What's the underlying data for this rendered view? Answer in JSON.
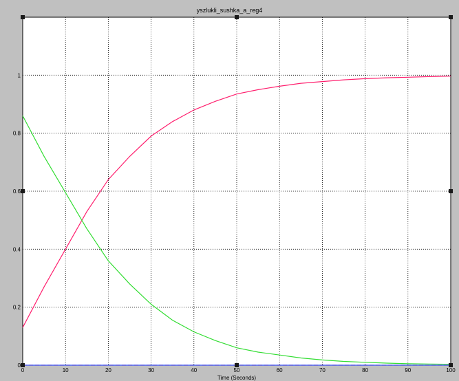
{
  "window": {
    "title": "yszlukli_sushka_a_reg4"
  },
  "chart_data": {
    "type": "line",
    "title": "yszlukli_sushka_a_reg4",
    "xlabel": "Time (Seconds)",
    "ylabel": "",
    "xlim": [
      0,
      100
    ],
    "ylim": [
      0,
      1.2
    ],
    "xticks": [
      0,
      10,
      20,
      30,
      40,
      50,
      60,
      70,
      80,
      90,
      100
    ],
    "yticks": [
      0,
      0.2,
      0.4,
      0.6,
      0.8,
      1
    ],
    "xtick_labels": [
      "0",
      "10",
      "20",
      "30",
      "40",
      "50",
      "60",
      "70",
      "80",
      "90",
      "100"
    ],
    "ytick_labels": [
      "0",
      "0.2",
      "0.4",
      "0.6",
      "0.8",
      "1"
    ],
    "grid": true,
    "background": "#ffffff",
    "series": [
      {
        "color": "#ff1f6e",
        "x": [
          0,
          5,
          10,
          15,
          20,
          25,
          30,
          35,
          40,
          45,
          50,
          55,
          60,
          65,
          70,
          75,
          80,
          85,
          90,
          95,
          100
        ],
        "y": [
          0.13,
          0.27,
          0.4,
          0.53,
          0.64,
          0.72,
          0.79,
          0.84,
          0.88,
          0.91,
          0.935,
          0.95,
          0.962,
          0.972,
          0.978,
          0.984,
          0.988,
          0.991,
          0.993,
          0.995,
          0.997
        ]
      },
      {
        "color": "#33dd33",
        "x": [
          0,
          5,
          10,
          15,
          20,
          25,
          30,
          35,
          40,
          45,
          50,
          55,
          60,
          65,
          70,
          75,
          80,
          85,
          90,
          95,
          100
        ],
        "y": [
          0.86,
          0.72,
          0.595,
          0.47,
          0.36,
          0.28,
          0.21,
          0.155,
          0.115,
          0.085,
          0.06,
          0.045,
          0.035,
          0.025,
          0.018,
          0.013,
          0.01,
          0.007,
          0.005,
          0.004,
          0.003
        ]
      },
      {
        "color": "#ff3333",
        "dash": true,
        "x": [
          0,
          100
        ],
        "y": [
          0,
          0
        ]
      },
      {
        "color": "#3355ff",
        "x": [
          0,
          100
        ],
        "y": [
          0,
          0
        ]
      }
    ]
  }
}
